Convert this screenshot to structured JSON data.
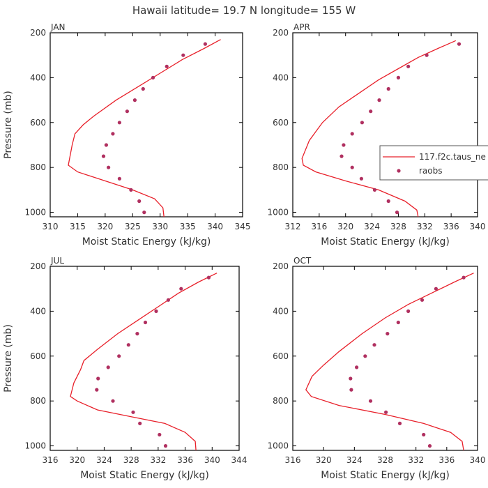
{
  "title": "Hawaii  latitude= 19.7 N longitude= 155 W",
  "colors": {
    "model": "#e8202a",
    "obs": "#b03060",
    "axis": "#000000",
    "text": "#333333"
  },
  "legend": {
    "model_label": "117.f2c.taus_ne",
    "obs_label": "raobs",
    "placement": "right-middle of APR panel"
  },
  "chart_data": [
    {
      "type": "line",
      "panel": "JAN",
      "xlabel": "Moist Static Energy (kJ/kg)",
      "ylabel": "Pressure (mb)",
      "xlim": [
        310,
        345
      ],
      "ylim": [
        1020,
        200
      ],
      "xticks": [
        310,
        315,
        320,
        325,
        330,
        335,
        340,
        345
      ],
      "yticks": [
        200,
        400,
        600,
        800,
        1000
      ],
      "model": {
        "name": "117.f2c.taus_ne",
        "x": [
          341,
          338,
          334,
          330,
          326,
          322,
          318,
          316,
          314.5,
          314,
          313.3,
          315,
          320,
          325,
          329,
          330.5,
          330.7
        ],
        "y": [
          230,
          270,
          320,
          380,
          440,
          500,
          570,
          610,
          650,
          700,
          790,
          820,
          860,
          900,
          940,
          980,
          1020
        ]
      },
      "obs": {
        "name": "raobs",
        "x": [
          338.2,
          334.2,
          331.2,
          328.7,
          326.9,
          325.4,
          324,
          322.6,
          321.4,
          320.2,
          319.7,
          320.6,
          322.6,
          324.7,
          326.2,
          327.1
        ],
        "y": [
          250,
          300,
          350,
          400,
          450,
          500,
          550,
          600,
          650,
          700,
          750,
          800,
          850,
          900,
          950,
          1000
        ]
      }
    },
    {
      "type": "line",
      "panel": "APR",
      "xlabel": "Moist Static Energy (kJ/kg)",
      "ylabel": "",
      "xlim": [
        312,
        340
      ],
      "ylim": [
        1020,
        200
      ],
      "xticks": [
        312,
        316,
        320,
        324,
        328,
        332,
        336,
        340
      ],
      "yticks": [
        200,
        400,
        600,
        800,
        1000
      ],
      "model": {
        "name": "117.f2c.taus_ne",
        "x": [
          336.7,
          334,
          331,
          328,
          325,
          322,
          319,
          316.5,
          314.5,
          313.4,
          313.6,
          315.5,
          320,
          325,
          329,
          330.8,
          331
        ],
        "y": [
          235,
          270,
          310,
          360,
          410,
          470,
          530,
          600,
          680,
          760,
          790,
          820,
          860,
          900,
          950,
          990,
          1020
        ]
      },
      "obs": {
        "name": "raobs",
        "x": [
          337.2,
          332.3,
          329.5,
          328,
          326.5,
          325.1,
          323.8,
          322.5,
          321,
          319.7,
          319.4,
          321,
          322.4,
          324.4,
          326.5,
          327.8
        ],
        "y": [
          250,
          300,
          350,
          400,
          450,
          500,
          550,
          600,
          650,
          700,
          750,
          800,
          850,
          900,
          950,
          1000
        ]
      }
    },
    {
      "type": "line",
      "panel": "JUL",
      "xlabel": "Moist Static Energy (kJ/kg)",
      "ylabel": "Pressure (mb)",
      "xlim": [
        316,
        344
      ],
      "ylim": [
        1020,
        200
      ],
      "xticks": [
        316,
        320,
        324,
        328,
        332,
        336,
        340,
        344
      ],
      "yticks": [
        200,
        400,
        600,
        800,
        1000
      ],
      "model": {
        "name": "117.f2c.taus_ne",
        "x": [
          340.7,
          338,
          335,
          332,
          329,
          326,
          323,
          321,
          320.5,
          319.5,
          319,
          320,
          323,
          328,
          333,
          336,
          337.5,
          337.6
        ],
        "y": [
          230,
          270,
          320,
          380,
          440,
          500,
          570,
          620,
          660,
          720,
          780,
          800,
          840,
          870,
          900,
          940,
          980,
          1020
        ]
      },
      "obs": {
        "name": "raobs",
        "x": [
          339.5,
          335.4,
          333.5,
          331.7,
          330.1,
          328.9,
          327.6,
          326.2,
          324.6,
          323.1,
          322.9,
          325.3,
          328.3,
          329.3,
          332.2,
          333.1
        ],
        "y": [
          250,
          300,
          350,
          400,
          450,
          500,
          550,
          600,
          650,
          700,
          750,
          800,
          850,
          900,
          950,
          1000
        ]
      }
    },
    {
      "type": "line",
      "panel": "OCT",
      "xlabel": "Moist Static Energy (kJ/kg)",
      "ylabel": "",
      "xlim": [
        316,
        340
      ],
      "ylim": [
        1020,
        200
      ],
      "xticks": [
        316,
        320,
        324,
        328,
        332,
        336,
        340
      ],
      "yticks": [
        200,
        400,
        600,
        800,
        1000
      ],
      "model": {
        "name": "117.f2c.taus_ne",
        "x": [
          339.5,
          337,
          334,
          331,
          328,
          325,
          322,
          320,
          318.5,
          317.7,
          318.4,
          322,
          328,
          333,
          336.5,
          338,
          338.2
        ],
        "y": [
          230,
          270,
          320,
          370,
          430,
          500,
          580,
          640,
          690,
          750,
          780,
          820,
          860,
          900,
          940,
          980,
          1020
        ]
      },
      "obs": {
        "name": "raobs",
        "x": [
          338.2,
          334.6,
          332.8,
          331,
          329.7,
          328.3,
          326.6,
          325.4,
          324.3,
          323.5,
          323.6,
          326.1,
          328.1,
          329.9,
          333,
          333.8
        ],
        "y": [
          250,
          300,
          350,
          400,
          450,
          500,
          550,
          600,
          650,
          700,
          750,
          800,
          850,
          900,
          950,
          1000
        ]
      }
    }
  ]
}
